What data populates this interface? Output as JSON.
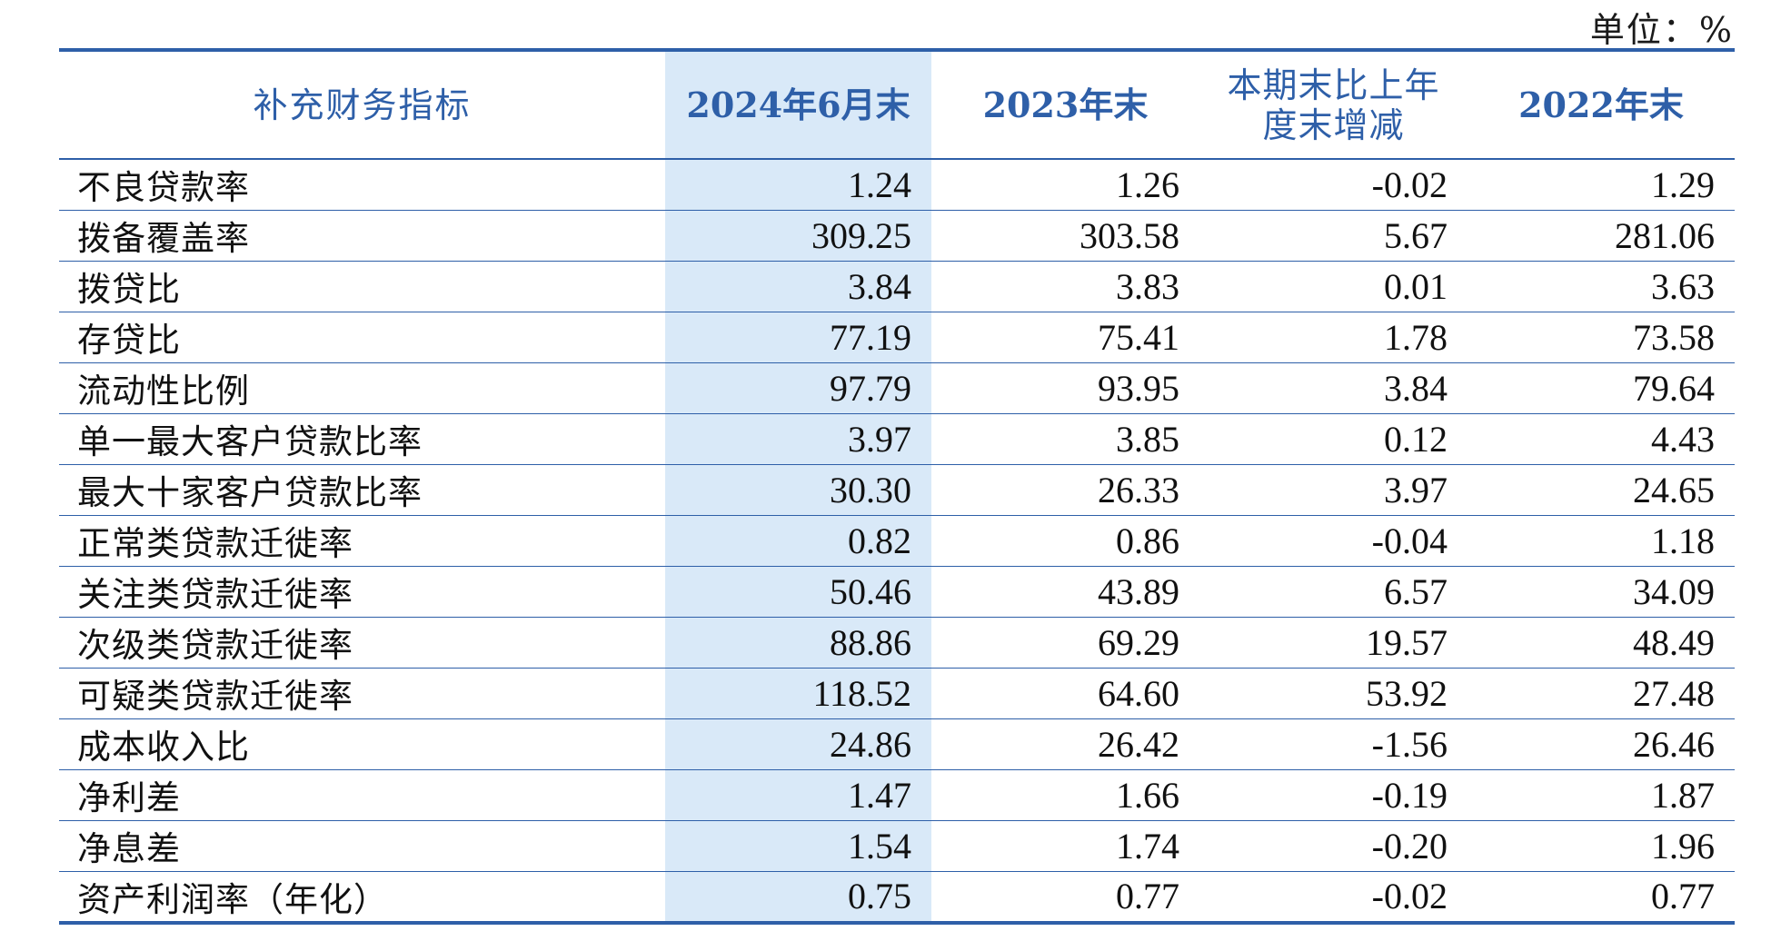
{
  "unit_label": "单位：%",
  "table": {
    "headers": [
      "补充财务指标",
      "2024年6月末",
      "2023年末",
      "本期末比上年度末增减",
      "2022年末"
    ],
    "header_c3_line1": "本期末比上年",
    "header_c3_line2": "度末增减",
    "rows": [
      {
        "label": "不良贷款率",
        "v2024h1": "1.24",
        "v2023": "1.26",
        "change": "-0.02",
        "v2022": "1.29"
      },
      {
        "label": "拨备覆盖率",
        "v2024h1": "309.25",
        "v2023": "303.58",
        "change": "5.67",
        "v2022": "281.06"
      },
      {
        "label": "拨贷比",
        "v2024h1": "3.84",
        "v2023": "3.83",
        "change": "0.01",
        "v2022": "3.63"
      },
      {
        "label": "存贷比",
        "v2024h1": "77.19",
        "v2023": "75.41",
        "change": "1.78",
        "v2022": "73.58"
      },
      {
        "label": "流动性比例",
        "v2024h1": "97.79",
        "v2023": "93.95",
        "change": "3.84",
        "v2022": "79.64"
      },
      {
        "label": "单一最大客户贷款比率",
        "v2024h1": "3.97",
        "v2023": "3.85",
        "change": "0.12",
        "v2022": "4.43"
      },
      {
        "label": "最大十家客户贷款比率",
        "v2024h1": "30.30",
        "v2023": "26.33",
        "change": "3.97",
        "v2022": "24.65"
      },
      {
        "label": "正常类贷款迁徙率",
        "v2024h1": "0.82",
        "v2023": "0.86",
        "change": "-0.04",
        "v2022": "1.18"
      },
      {
        "label": "关注类贷款迁徙率",
        "v2024h1": "50.46",
        "v2023": "43.89",
        "change": "6.57",
        "v2022": "34.09"
      },
      {
        "label": "次级类贷款迁徙率",
        "v2024h1": "88.86",
        "v2023": "69.29",
        "change": "19.57",
        "v2022": "48.49"
      },
      {
        "label": "可疑类贷款迁徙率",
        "v2024h1": "118.52",
        "v2023": "64.60",
        "change": "53.92",
        "v2022": "27.48"
      },
      {
        "label": "成本收入比",
        "v2024h1": "24.86",
        "v2023": "26.42",
        "change": "-1.56",
        "v2022": "26.46"
      },
      {
        "label": "净利差",
        "v2024h1": "1.47",
        "v2023": "1.66",
        "change": "-0.19",
        "v2022": "1.87"
      },
      {
        "label": "净息差",
        "v2024h1": "1.54",
        "v2023": "1.74",
        "change": "-0.20",
        "v2022": "1.96"
      },
      {
        "label": "资产利润率（年化）",
        "v2024h1": "0.75",
        "v2023": "0.77",
        "change": "-0.02",
        "v2022": "0.77"
      }
    ]
  },
  "colors": {
    "accent": "#2e5fa8",
    "highlight_column": "#d9e9f8",
    "text": "#111111"
  }
}
